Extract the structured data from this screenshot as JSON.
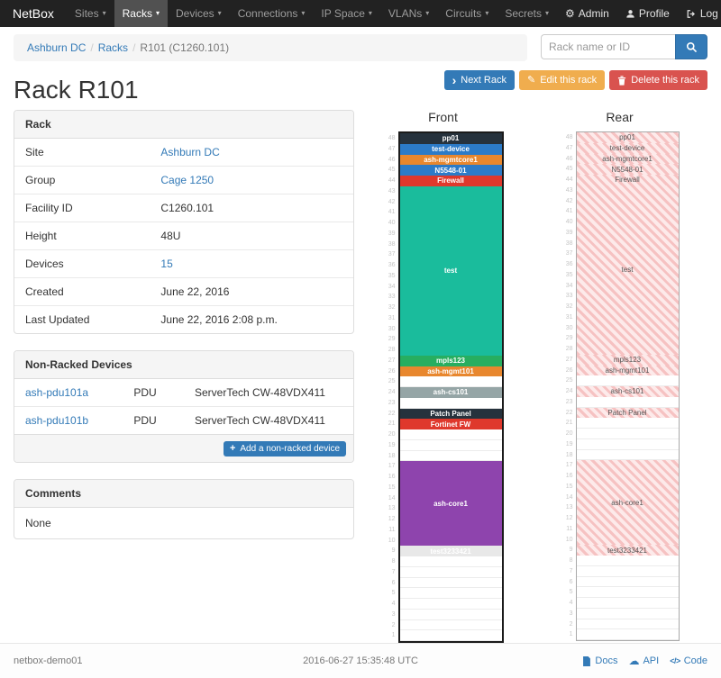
{
  "colors": {
    "accent": "#337ab7",
    "warning": "#f0ad4e",
    "danger": "#d9534f",
    "navbar_bg": "#222222"
  },
  "navbar": {
    "brand": "NetBox",
    "items": [
      {
        "label": "Sites",
        "active": false
      },
      {
        "label": "Racks",
        "active": true
      },
      {
        "label": "Devices",
        "active": false
      },
      {
        "label": "Connections",
        "active": false
      },
      {
        "label": "IP Space",
        "active": false
      },
      {
        "label": "VLANs",
        "active": false
      },
      {
        "label": "Circuits",
        "active": false
      },
      {
        "label": "Secrets",
        "active": false
      }
    ],
    "right": [
      {
        "label": "Admin",
        "icon": "gear-icon"
      },
      {
        "label": "Profile",
        "icon": "user-icon"
      },
      {
        "label": "Log out",
        "icon": "log-out-icon"
      }
    ]
  },
  "breadcrumb": {
    "items": [
      {
        "label": "Ashburn DC",
        "link": true
      },
      {
        "label": "Racks",
        "link": true
      },
      {
        "label": "R101 (C1260.101)",
        "link": false
      }
    ]
  },
  "search": {
    "placeholder": "Rack name or ID",
    "icon": "search-icon"
  },
  "page": {
    "title": "Rack R101"
  },
  "actions": [
    {
      "label": "Next Rack",
      "style": "primary",
      "icon": "chevron-right-icon"
    },
    {
      "label": "Edit this rack",
      "style": "warning",
      "icon": "pencil-icon"
    },
    {
      "label": "Delete this rack",
      "style": "danger",
      "icon": "trash-icon"
    }
  ],
  "rack_panel": {
    "title": "Rack",
    "rows": [
      {
        "label": "Site",
        "value": "Ashburn DC",
        "link": true
      },
      {
        "label": "Group",
        "value": "Cage 1250",
        "link": true
      },
      {
        "label": "Facility ID",
        "value": "C1260.101",
        "link": false
      },
      {
        "label": "Height",
        "value": "48U",
        "link": false
      },
      {
        "label": "Devices",
        "value": "15",
        "link": true
      },
      {
        "label": "Created",
        "value": "June 22, 2016",
        "link": false
      },
      {
        "label": "Last Updated",
        "value": "June 22, 2016 2:08 p.m.",
        "link": false
      }
    ]
  },
  "nonracked_panel": {
    "title": "Non-Racked Devices",
    "devices": [
      {
        "name": "ash-pdu101a",
        "role": "PDU",
        "type": "ServerTech CW-48VDX411"
      },
      {
        "name": "ash-pdu101b",
        "role": "PDU",
        "type": "ServerTech CW-48VDX411"
      }
    ],
    "add_button_label": "Add a non-racked device",
    "add_button_icon": "plus-icon"
  },
  "comments_panel": {
    "title": "Comments",
    "body": "None"
  },
  "elevations": {
    "front_title": "Front",
    "rear_title": "Rear",
    "units": 48,
    "devices": [
      {
        "name": "pp01",
        "top_u": 48,
        "u_height": 1,
        "color": "#26323d",
        "faces": "both"
      },
      {
        "name": "test-device",
        "top_u": 47,
        "u_height": 1,
        "color": "#2c7bc8",
        "faces": "both"
      },
      {
        "name": "ash-mgmtcore1",
        "top_u": 46,
        "u_height": 1,
        "color": "#e8872e",
        "faces": "both"
      },
      {
        "name": "N5548-01",
        "top_u": 45,
        "u_height": 1,
        "color": "#2c7bc8",
        "faces": "both"
      },
      {
        "name": "Firewall",
        "top_u": 44,
        "u_height": 1,
        "color": "#df382c",
        "faces": "both"
      },
      {
        "name": "test",
        "top_u": 43,
        "u_height": 16,
        "color": "#1abc9c",
        "faces": "both"
      },
      {
        "name": "mpls123",
        "top_u": 27,
        "u_height": 1,
        "color": "#27ae60",
        "faces": "both"
      },
      {
        "name": "ash-mgmt101",
        "top_u": 26,
        "u_height": 1,
        "color": "#e8872e",
        "faces": "both"
      },
      {
        "name": "ash-cs101",
        "top_u": 24,
        "u_height": 1,
        "color": "#95a5a6",
        "faces": "both"
      },
      {
        "name": "Patch Panel",
        "top_u": 22,
        "u_height": 1,
        "color": "#26323d",
        "faces": "both"
      },
      {
        "name": "Fortinet FW",
        "top_u": 21,
        "u_height": 1,
        "color": "#df382c",
        "faces": "front"
      },
      {
        "name": "ash-core1",
        "top_u": 17,
        "u_height": 8,
        "color": "#8e44ad",
        "faces": "both"
      },
      {
        "name": "test3233421",
        "top_u": 9,
        "u_height": 1,
        "color": "#e8e8e8",
        "text_color": "#ffffff",
        "faces": "both"
      }
    ]
  },
  "footer": {
    "hostname": "netbox-demo01",
    "timestamp": "2016-06-27 15:35:48 UTC",
    "links": [
      {
        "label": "Docs",
        "icon": "document-icon"
      },
      {
        "label": "API",
        "icon": "cloud-icon"
      },
      {
        "label": "Code",
        "icon": "code-icon"
      }
    ]
  }
}
